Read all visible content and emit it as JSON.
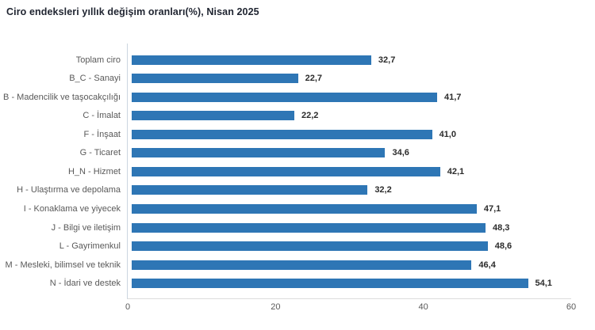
{
  "chart_data": {
    "type": "bar",
    "orientation": "horizontal",
    "title": "Ciro endeksleri yıllık değişim oranları(%), Nisan 2025",
    "xlabel": "",
    "ylabel": "",
    "categories": [
      "Toplam ciro",
      "B_C - Sanayi",
      "B - Madencilik ve taşocakçılığı",
      "C - İmalat",
      "F - İnşaat",
      "G - Ticaret",
      "H_N - Hizmet",
      "H - Ulaştırma ve depolama",
      "I - Konaklama ve yiyecek",
      "J - Bilgi ve iletişim",
      "L - Gayrimenkul",
      "M - Mesleki, bilimsel ve teknik",
      "N - İdari ve destek"
    ],
    "values": [
      32.7,
      22.7,
      41.7,
      22.2,
      41.0,
      34.6,
      42.1,
      32.2,
      47.1,
      48.3,
      48.6,
      46.4,
      54.1
    ],
    "value_labels": [
      "32,7",
      "22,7",
      "41,7",
      "22,2",
      "41,0",
      "34,6",
      "42,1",
      "32,2",
      "47,1",
      "48,3",
      "48,6",
      "46,4",
      "54,1"
    ],
    "xlim": [
      0,
      60
    ],
    "x_ticks": [
      "0",
      "20",
      "40",
      "60"
    ],
    "x_tick_values": [
      0,
      20,
      40,
      60
    ],
    "bar_color": "#2E76B5",
    "grid": false,
    "legend": null
  }
}
